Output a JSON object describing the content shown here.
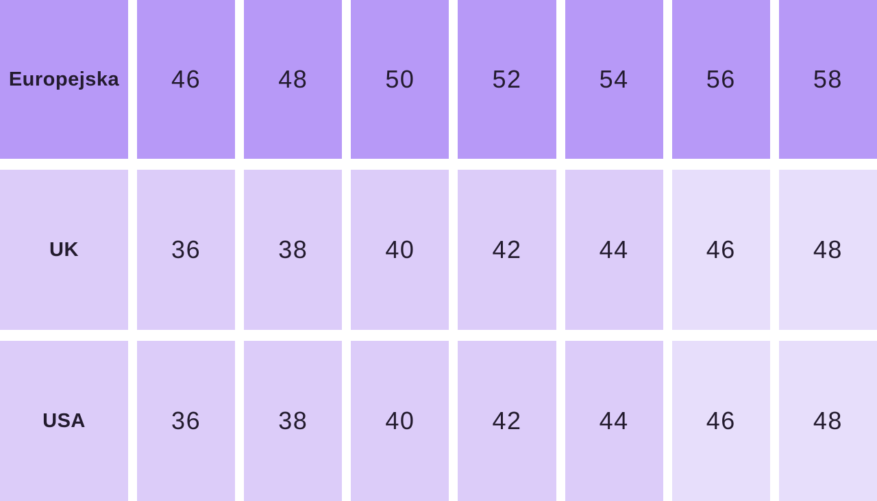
{
  "chart_data": {
    "type": "table",
    "rows": [
      {
        "label": "Europejska",
        "values": [
          "46",
          "48",
          "50",
          "52",
          "54",
          "56",
          "58"
        ]
      },
      {
        "label": "UK",
        "values": [
          "36",
          "38",
          "40",
          "42",
          "44",
          "46",
          "48"
        ]
      },
      {
        "label": "USA",
        "values": [
          "36",
          "38",
          "40",
          "42",
          "44",
          "46",
          "48"
        ]
      }
    ]
  },
  "colors": {
    "header_cell": "#b799f7",
    "body_cell": "#dcccf9",
    "body_cell_light": "#e7defb",
    "background": "#ffffff",
    "text": "#231b2e"
  }
}
